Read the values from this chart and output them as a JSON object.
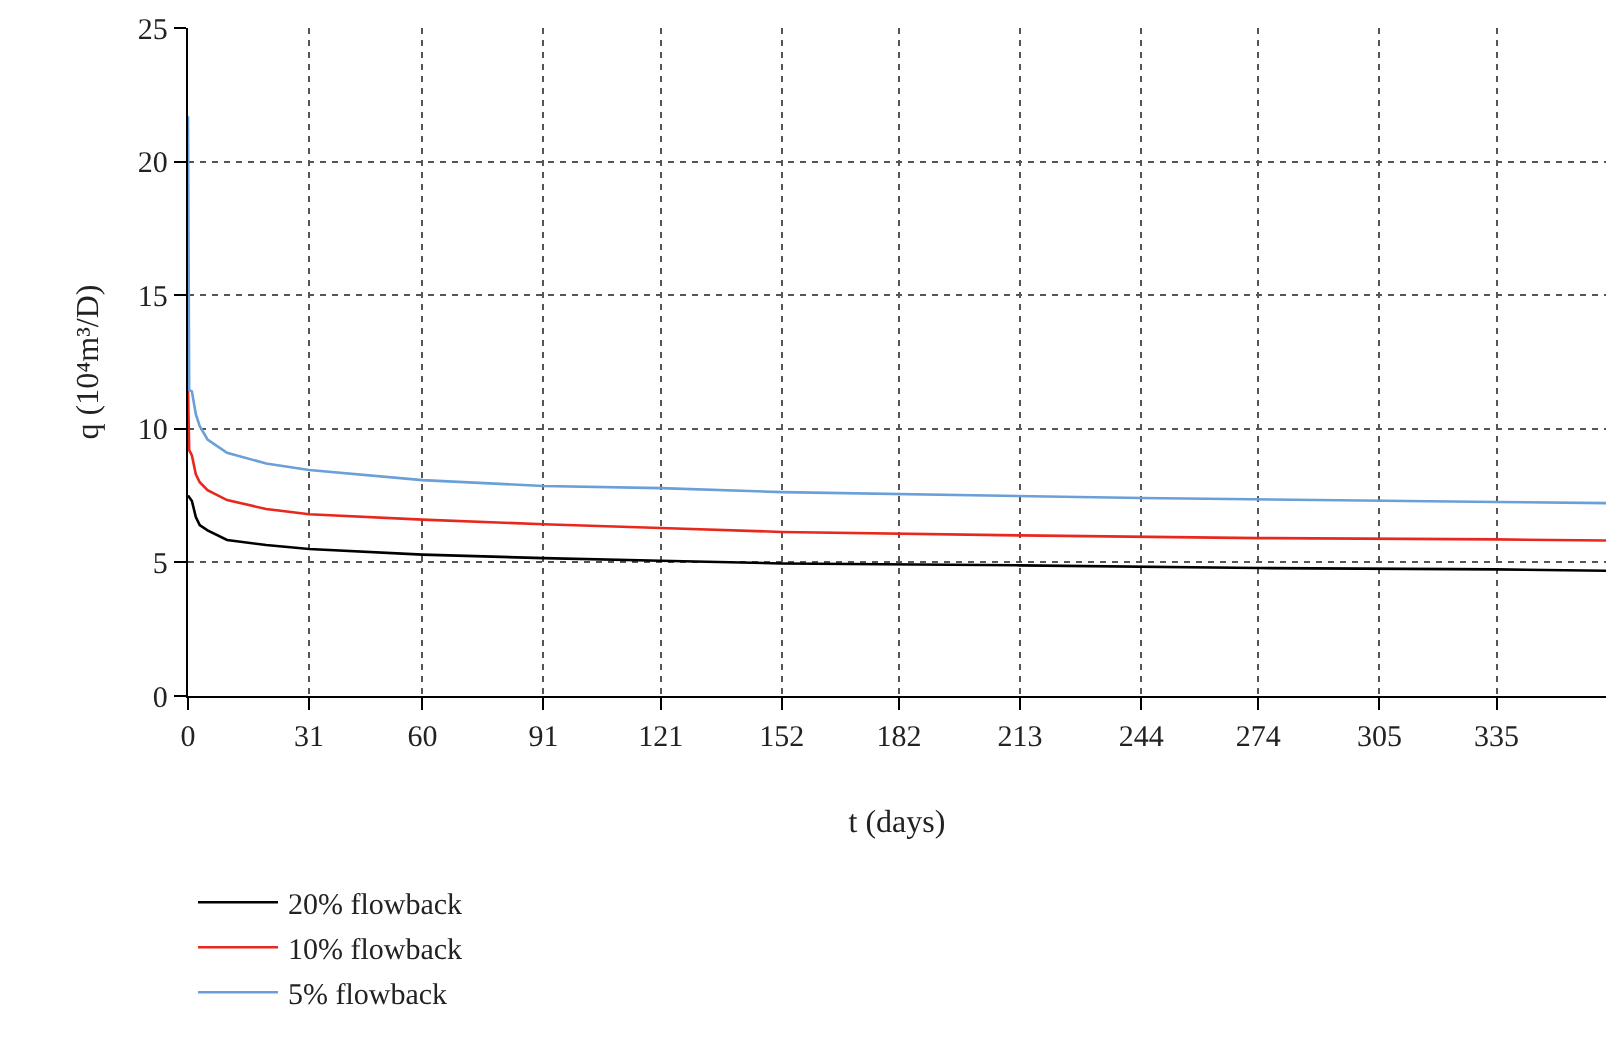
{
  "chart_data": {
    "type": "line",
    "xlabel": "t (days)",
    "ylabel": "q (10⁴m³/D)",
    "xlim": [
      0,
      363
    ],
    "xticks": [
      0,
      31,
      60,
      91,
      121,
      152,
      182,
      213,
      244,
      274,
      305,
      335
    ],
    "ylim": [
      0,
      25
    ],
    "yticks": [
      0,
      5,
      10,
      15,
      20,
      25
    ],
    "grid": true,
    "line_style": "solid",
    "marker": "none",
    "legend": "bottom left",
    "series": [
      {
        "name": "20% flowback",
        "color": "#000000",
        "x": [
          0,
          0.5,
          1,
          2,
          3,
          5,
          10,
          20,
          31,
          60,
          91,
          121,
          152,
          213,
          274,
          335,
          363
        ],
        "values": [
          7.5,
          7.4,
          7.3,
          6.7,
          6.4,
          6.2,
          5.84,
          5.65,
          5.5,
          5.29,
          5.16,
          5.06,
          4.96,
          4.89,
          4.79,
          4.74,
          4.69
        ]
      },
      {
        "name": "10% flowback",
        "color": "#e8281e",
        "x": [
          0,
          0.3,
          1,
          2,
          3,
          5,
          10,
          20,
          31,
          60,
          91,
          121,
          152,
          213,
          274,
          335,
          363
        ],
        "values": [
          11.45,
          9.2,
          9.0,
          8.3,
          8.0,
          7.7,
          7.33,
          7.0,
          6.8,
          6.6,
          6.43,
          6.29,
          6.14,
          6.01,
          5.91,
          5.86,
          5.82
        ]
      },
      {
        "name": "5% flowback",
        "color": "#6a9fd8",
        "x": [
          0,
          0.3,
          1,
          2,
          3,
          5,
          10,
          20,
          31,
          60,
          91,
          121,
          152,
          244,
          335,
          363
        ],
        "values": [
          21.7,
          11.45,
          11.4,
          10.55,
          10.1,
          9.6,
          9.1,
          8.7,
          8.46,
          8.08,
          7.86,
          7.78,
          7.63,
          7.41,
          7.26,
          7.22
        ]
      }
    ]
  }
}
